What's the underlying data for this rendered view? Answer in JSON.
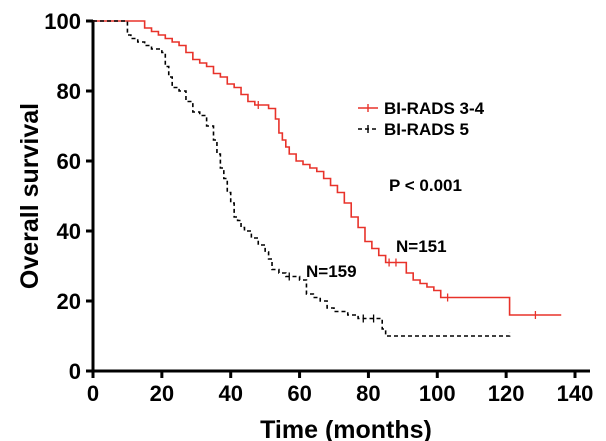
{
  "chart_data": {
    "type": "line",
    "subtype": "kaplan-meier step curve",
    "title": "",
    "xlabel": "Time (months)",
    "ylabel": "Overall survival",
    "xlim": [
      0,
      140
    ],
    "ylim": [
      0,
      100
    ],
    "xticks": [
      0,
      20,
      40,
      60,
      80,
      100,
      120,
      140
    ],
    "yticks": [
      0,
      20,
      40,
      60,
      80,
      100
    ],
    "grid": false,
    "legend_position": "right",
    "annotations": {
      "p_value": "P < 0.001",
      "n_red": "N=151",
      "n_black": "N=159"
    },
    "series": [
      {
        "name": "BI-RADS 3-4",
        "color": "#e8322a",
        "dash": "solid",
        "x": [
          0,
          15,
          17,
          19,
          21,
          23,
          25,
          27,
          29,
          31,
          33,
          35,
          37,
          39,
          41,
          43,
          45,
          47,
          49,
          51,
          53,
          54,
          55,
          56,
          57,
          59,
          61,
          63,
          65,
          67,
          69,
          71,
          73,
          75,
          77,
          79,
          81,
          83,
          85,
          87,
          89,
          91,
          93,
          95,
          97,
          99,
          101,
          105,
          121,
          136
        ],
        "y": [
          100,
          98,
          97,
          96,
          95,
          94,
          93,
          91,
          89,
          88,
          87,
          85,
          84,
          82,
          81,
          79,
          77,
          76,
          76,
          75,
          72,
          68,
          66,
          64,
          62,
          60,
          59,
          58,
          57,
          55,
          53,
          51,
          48,
          44,
          41,
          37,
          35,
          33,
          31,
          31,
          31,
          28,
          26,
          25,
          24,
          23,
          21,
          21,
          16,
          16
        ]
      },
      {
        "name": "BI-RADS 5",
        "color": "#000000",
        "dash": "dashed",
        "x": [
          0,
          10,
          11,
          13,
          15,
          17,
          20,
          21,
          22,
          23,
          25,
          27,
          29,
          31,
          33,
          35,
          36,
          37,
          38,
          39,
          40,
          41,
          42,
          43,
          44,
          46,
          48,
          50,
          51,
          52,
          54,
          56,
          58,
          60,
          62,
          64,
          66,
          68,
          70,
          74,
          77,
          80,
          83,
          84,
          85,
          121
        ],
        "y": [
          100,
          96,
          95,
          94,
          93,
          92,
          91,
          87,
          84,
          81,
          80,
          77,
          74,
          73,
          70,
          66,
          62,
          58,
          55,
          51,
          48,
          44,
          43,
          41,
          40,
          38,
          36,
          34,
          32,
          29,
          28,
          27,
          27,
          26,
          22,
          21,
          20,
          18,
          17,
          16,
          15,
          15,
          15,
          12,
          10,
          11
        ]
      }
    ]
  }
}
